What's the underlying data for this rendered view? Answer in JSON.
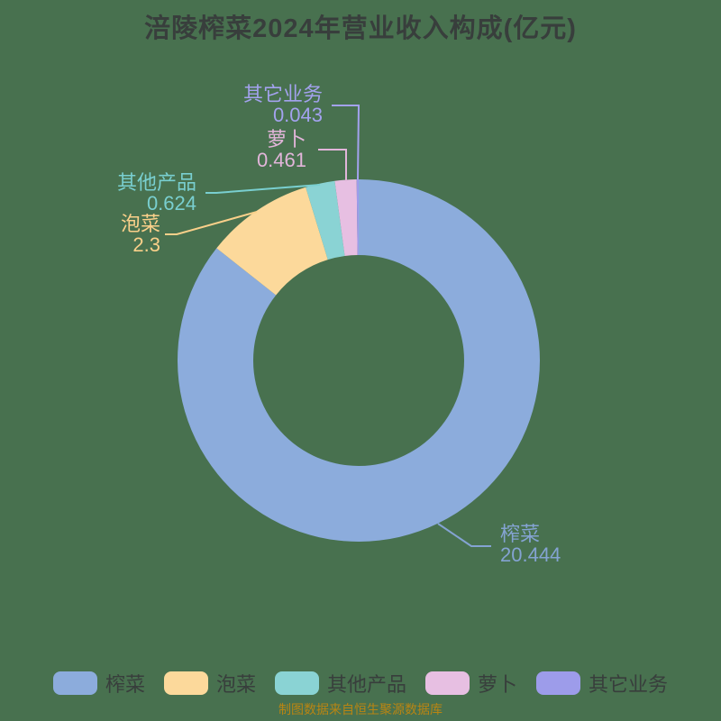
{
  "title": "涪陵榨菜2024年营业收入构成(亿元)",
  "footer": "制图数据来自恒生聚源数据库",
  "colors": {
    "background": "#48714f",
    "title_text": "#383e3c",
    "legend_text": "#383e3c",
    "footer_text": "#b98513"
  },
  "chart_data": {
    "type": "pie",
    "subtype": "donut",
    "title": "涪陵榨菜2024年营业收入构成(亿元)",
    "unit": "亿元",
    "start_angle": "top",
    "direction": "clockwise",
    "legend_position": "bottom",
    "categories": [
      "榨菜",
      "泡菜",
      "其他产品",
      "萝卜",
      "其它业务"
    ],
    "values": [
      20.444,
      2.3,
      0.624,
      0.461,
      0.043
    ],
    "slice_colors": [
      "#8cacdc",
      "#fcd99b",
      "#8ad3d4",
      "#e7bfe2",
      "#9d9cea"
    ],
    "label_colors": [
      "#84a3d2",
      "#fad08a",
      "#79cfd0",
      "#e2b5da",
      "#a3a2ee"
    ]
  }
}
